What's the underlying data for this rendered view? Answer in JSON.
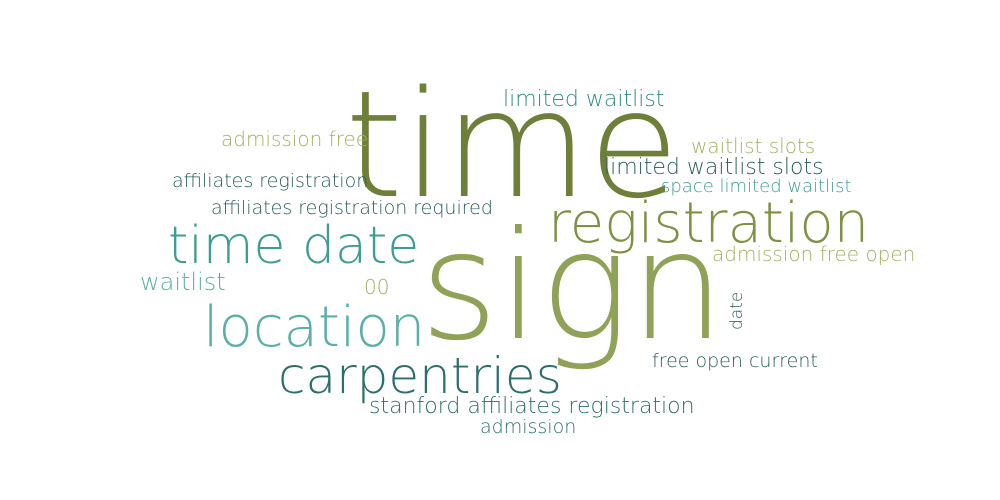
{
  "words": [
    {
      "text": "time",
      "color": "#6e7f3a"
    },
    {
      "text": "sign",
      "color": "#8fa257"
    },
    {
      "text": "registration",
      "color": "#7f9144"
    },
    {
      "text": "time date",
      "color": "#3b9e90"
    },
    {
      "text": "location",
      "color": "#5ab0a6"
    },
    {
      "text": "carpentries",
      "color": "#2b6f6a"
    },
    {
      "text": "limited waitlist",
      "color": "#2e8a82"
    },
    {
      "text": "admission free",
      "color": "#a6b060"
    },
    {
      "text": "waitlist slots",
      "color": "#a6b060"
    },
    {
      "text": "limited waitlist slots",
      "color": "#2b5e5a"
    },
    {
      "text": "affiliates registration",
      "color": "#2b5e5a"
    },
    {
      "text": "space limited waitlist",
      "color": "#3d9e95"
    },
    {
      "text": "affiliates registration required",
      "color": "#2b5e5a"
    },
    {
      "text": "admission free open",
      "color": "#a6b060"
    },
    {
      "text": "waitlist",
      "color": "#5ab0a6"
    },
    {
      "text": "00",
      "color": "#a6b060"
    },
    {
      "text": "date",
      "color": "#2b5e5a"
    },
    {
      "text": "free open current",
      "color": "#2b5e5a"
    },
    {
      "text": "stanford affiliates registration",
      "color": "#2b6f6a"
    },
    {
      "text": "admission",
      "color": "#2b6f6a"
    }
  ]
}
